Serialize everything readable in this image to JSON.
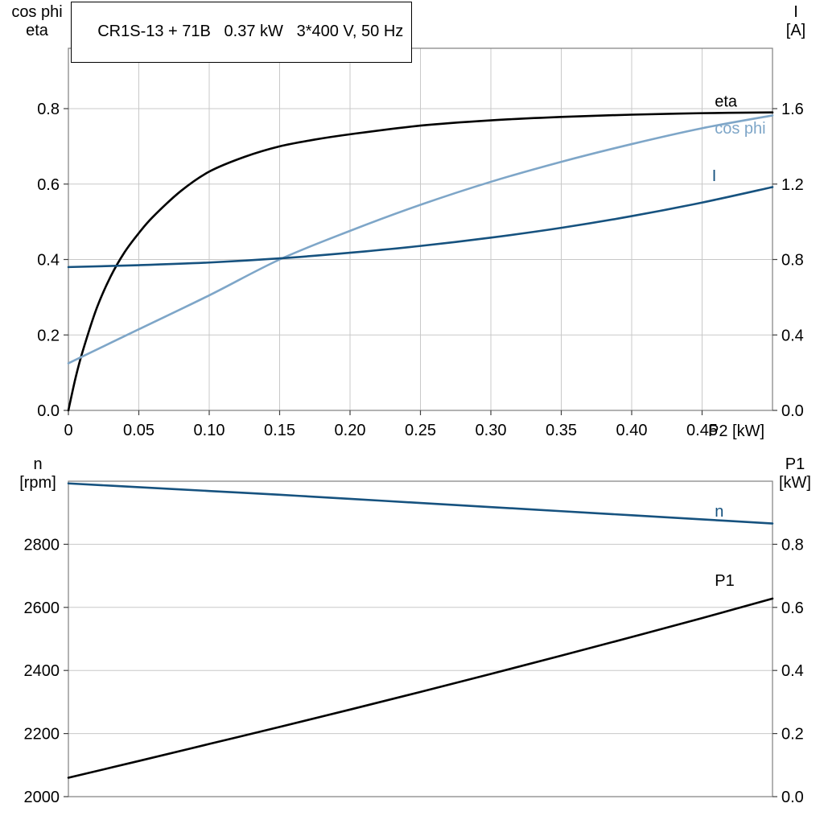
{
  "title": "CR1S-13 + 71B   0.37 kW   3*400 V, 50 Hz",
  "chart_data": [
    {
      "type": "line",
      "title": "CR1S-13 + 71B   0.37 kW   3*400 V, 50 Hz",
      "x_axis": {
        "label": "P2 [kW]",
        "min": 0,
        "max": 0.5,
        "ticks": [
          {
            "v": 0,
            "label": "0"
          },
          {
            "v": 0.05,
            "label": "0.05"
          },
          {
            "v": 0.1,
            "label": "0.10"
          },
          {
            "v": 0.15,
            "label": "0.15"
          },
          {
            "v": 0.2,
            "label": "0.20"
          },
          {
            "v": 0.25,
            "label": "0.25"
          },
          {
            "v": 0.3,
            "label": "0.30"
          },
          {
            "v": 0.35,
            "label": "0.35"
          },
          {
            "v": 0.4,
            "label": "0.40"
          },
          {
            "v": 0.45,
            "label": "0.45"
          }
        ]
      },
      "left_axis": {
        "title_line1": "cos phi",
        "title_line2": "eta",
        "min": 0,
        "max": 0.96,
        "ticks": [
          {
            "v": 0,
            "label": "0.0"
          },
          {
            "v": 0.2,
            "label": "0.2"
          },
          {
            "v": 0.4,
            "label": "0.4"
          },
          {
            "v": 0.6,
            "label": "0.6"
          },
          {
            "v": 0.8,
            "label": "0.8"
          }
        ]
      },
      "right_axis": {
        "title_line1": "I",
        "title_line2": "[A]",
        "min": 0,
        "max": 1.92,
        "ticks": [
          {
            "v": 0,
            "label": "0.0"
          },
          {
            "v": 0.4,
            "label": "0.4"
          },
          {
            "v": 0.8,
            "label": "0.8"
          },
          {
            "v": 1.2,
            "label": "1.2"
          },
          {
            "v": 1.6,
            "label": "1.6"
          }
        ]
      },
      "grid": {
        "vertical": true,
        "horizontal": true
      },
      "colors": {
        "black": "#000000",
        "light_blue": "#7ea6c8",
        "dark_blue": "#16527f"
      },
      "series": [
        {
          "name": "eta",
          "color": "#000000",
          "axis": "left",
          "label": {
            "x": 0.459,
            "y": 0.82
          },
          "points": [
            [
              0,
              0
            ],
            [
              0.005,
              0.085
            ],
            [
              0.01,
              0.155
            ],
            [
              0.02,
              0.27
            ],
            [
              0.03,
              0.355
            ],
            [
              0.04,
              0.42
            ],
            [
              0.05,
              0.47
            ],
            [
              0.06,
              0.513
            ],
            [
              0.08,
              0.582
            ],
            [
              0.1,
              0.633
            ],
            [
              0.125,
              0.672
            ],
            [
              0.15,
              0.7
            ],
            [
              0.175,
              0.718
            ],
            [
              0.2,
              0.732
            ],
            [
              0.25,
              0.755
            ],
            [
              0.3,
              0.769
            ],
            [
              0.35,
              0.778
            ],
            [
              0.4,
              0.784
            ],
            [
              0.45,
              0.788
            ],
            [
              0.5,
              0.79
            ]
          ]
        },
        {
          "name": "cos phi",
          "color": "#7ea6c8",
          "axis": "left",
          "label": {
            "x": 0.459,
            "y": 0.749
          },
          "points": [
            [
              0,
              0.125
            ],
            [
              0.05,
              0.215
            ],
            [
              0.1,
              0.305
            ],
            [
              0.15,
              0.4
            ],
            [
              0.2,
              0.476
            ],
            [
              0.25,
              0.545
            ],
            [
              0.3,
              0.606
            ],
            [
              0.35,
              0.659
            ],
            [
              0.4,
              0.706
            ],
            [
              0.45,
              0.748
            ],
            [
              0.5,
              0.782
            ]
          ]
        },
        {
          "name": "I",
          "color": "#16527f",
          "axis": "right",
          "label": {
            "x": 0.457,
            "y": 1.246
          },
          "points": [
            [
              0,
              0.76
            ],
            [
              0.05,
              0.77
            ],
            [
              0.1,
              0.784
            ],
            [
              0.15,
              0.806
            ],
            [
              0.2,
              0.836
            ],
            [
              0.25,
              0.872
            ],
            [
              0.3,
              0.916
            ],
            [
              0.35,
              0.968
            ],
            [
              0.4,
              1.03
            ],
            [
              0.45,
              1.102
            ],
            [
              0.5,
              1.184
            ]
          ]
        }
      ]
    },
    {
      "type": "line",
      "title": "",
      "x_axis": {
        "label": "",
        "min": 0,
        "max": 0.5,
        "ticks": []
      },
      "left_axis": {
        "title_line1": "n",
        "title_line2": "[rpm]",
        "min": 2000,
        "max": 3000,
        "ticks": [
          {
            "v": 2000,
            "label": "2000"
          },
          {
            "v": 2200,
            "label": "2200"
          },
          {
            "v": 2400,
            "label": "2400"
          },
          {
            "v": 2600,
            "label": "2600"
          },
          {
            "v": 2800,
            "label": "2800"
          }
        ]
      },
      "right_axis": {
        "title_line1": "P1",
        "title_line2": "[kW]",
        "min": 0,
        "max": 1,
        "ticks": [
          {
            "v": 0,
            "label": "0.0"
          },
          {
            "v": 0.2,
            "label": "0.2"
          },
          {
            "v": 0.4,
            "label": "0.4"
          },
          {
            "v": 0.6,
            "label": "0.6"
          },
          {
            "v": 0.8,
            "label": "0.8"
          }
        ]
      },
      "grid": {
        "vertical": false,
        "horizontal": true
      },
      "series": [
        {
          "name": "n",
          "color": "#16527f",
          "axis": "left",
          "label": {
            "x": 0.459,
            "y": 2906
          },
          "points": [
            [
              0,
              2993
            ],
            [
              0.05,
              2981
            ],
            [
              0.1,
              2969
            ],
            [
              0.15,
              2957
            ],
            [
              0.2,
              2944
            ],
            [
              0.25,
              2931
            ],
            [
              0.3,
              2918
            ],
            [
              0.35,
              2905
            ],
            [
              0.4,
              2892
            ],
            [
              0.45,
              2879
            ],
            [
              0.5,
              2866
            ]
          ]
        },
        {
          "name": "P1",
          "color": "#000000",
          "axis": "right",
          "label": {
            "x": 0.459,
            "y": 0.686
          },
          "points": [
            [
              0,
              0.06
            ],
            [
              0.05,
              0.113
            ],
            [
              0.1,
              0.167
            ],
            [
              0.15,
              0.221
            ],
            [
              0.2,
              0.276
            ],
            [
              0.25,
              0.332
            ],
            [
              0.3,
              0.389
            ],
            [
              0.35,
              0.447
            ],
            [
              0.4,
              0.506
            ],
            [
              0.45,
              0.566
            ],
            [
              0.5,
              0.628
            ]
          ]
        }
      ]
    }
  ]
}
